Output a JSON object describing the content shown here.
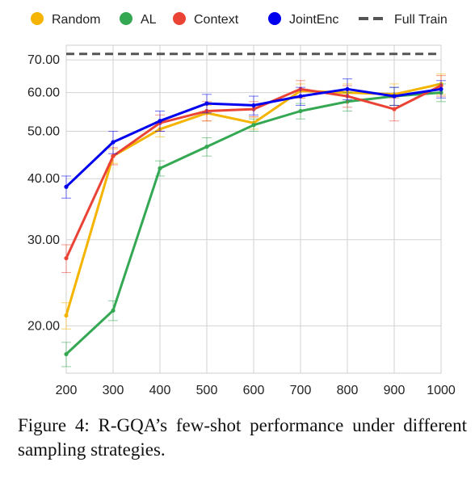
{
  "chart_data": {
    "type": "line",
    "y_scale": "log",
    "x": [
      200,
      300,
      400,
      500,
      600,
      700,
      800,
      900,
      1000
    ],
    "x_tick_labels": [
      "200",
      "300",
      "400",
      "500",
      "600",
      "700",
      "800",
      "900",
      "1000"
    ],
    "y_ticks": [
      20,
      30,
      40,
      50,
      60,
      70
    ],
    "y_tick_labels": [
      "20.00",
      "30.00",
      "40.00",
      "50.00",
      "60.00",
      "70.00"
    ],
    "ylim": [
      16,
      75
    ],
    "grid": true,
    "legend_position": "top",
    "series": [
      {
        "name": "Random",
        "color": "#f4b400",
        "values": [
          21.0,
          44.5,
          50.5,
          54.5,
          52.0,
          60.5,
          60.0,
          59.5,
          62.5
        ],
        "err": [
          1.3,
          1.5,
          1.8,
          2.0,
          1.5,
          2.0,
          2.5,
          3.0,
          3.0
        ]
      },
      {
        "name": "AL",
        "color": "#34a853",
        "values": [
          17.5,
          21.5,
          42.0,
          46.5,
          51.5,
          55.0,
          57.5,
          59.0,
          60.0
        ],
        "err": [
          1.0,
          1.0,
          1.5,
          2.0,
          1.5,
          2.0,
          2.5,
          2.5,
          2.5
        ]
      },
      {
        "name": "Context",
        "color": "#ea4335",
        "values": [
          27.5,
          44.5,
          52.0,
          55.0,
          55.5,
          61.0,
          59.0,
          55.5,
          62.0
        ],
        "err": [
          1.8,
          1.8,
          2.0,
          2.5,
          2.0,
          2.5,
          3.0,
          3.0,
          3.0
        ]
      },
      {
        "name": "JointEnc",
        "color": "#0000ee",
        "values": [
          38.5,
          47.5,
          52.5,
          57.0,
          56.5,
          59.0,
          61.0,
          59.0,
          61.0
        ],
        "err": [
          2.0,
          2.5,
          2.5,
          2.5,
          2.5,
          2.5,
          3.0,
          2.5,
          2.5
        ]
      }
    ],
    "reference_lines": [
      {
        "name": "Full Train",
        "value": 72.0,
        "color": "#555555",
        "style": "dashed"
      }
    ]
  },
  "caption": {
    "text": "Figure 4: R-GQA’s few-shot performance under different sampling strategies."
  }
}
